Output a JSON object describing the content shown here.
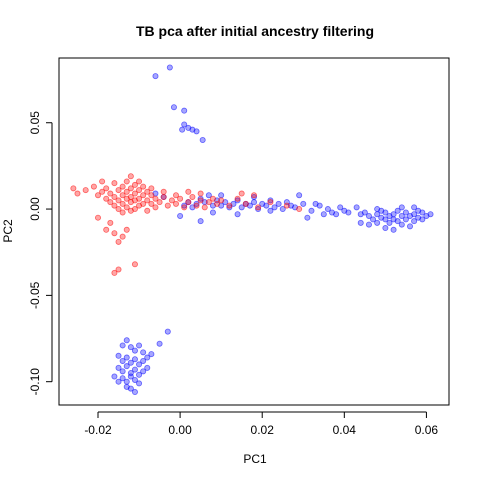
{
  "chart_data": {
    "type": "scatter",
    "title": "TB pca after initial ancestry filtering",
    "xlabel": "PC1",
    "ylabel": "PC2",
    "xlim": [
      -0.0295,
      0.0655
    ],
    "ylim": [
      -0.1135,
      0.0875
    ],
    "xticks": [
      -0.02,
      0.0,
      0.02,
      0.04,
      0.06
    ],
    "xtick_labels": [
      "-0.02",
      "0.00",
      "0.02",
      "0.04",
      "0.06"
    ],
    "yticks": [
      -0.1,
      -0.05,
      0.0,
      0.05
    ],
    "ytick_labels": [
      "-0.10",
      "-0.05",
      "0.00",
      "0.05"
    ],
    "grid": false,
    "legend": "none",
    "colors": {
      "blue": "#0000ff",
      "red": "#ff0000"
    },
    "series": [
      {
        "color": "blue",
        "points": [
          [
            -0.006,
            0.077
          ],
          [
            -0.0025,
            0.082
          ],
          [
            -0.0015,
            0.059
          ],
          [
            0.001,
            0.057
          ],
          [
            0.001,
            0.049
          ],
          [
            0.002,
            0.047
          ],
          [
            0.003,
            0.046
          ],
          [
            0.004,
            0.045
          ],
          [
            0.0055,
            0.04
          ],
          [
            0.0005,
            0.046
          ],
          [
            0.001,
            0.002
          ],
          [
            0.002,
            0.004
          ],
          [
            0.003,
            0.001
          ],
          [
            0.004,
            0.003
          ],
          [
            0.005,
            0.006
          ],
          [
            0.006,
            0.004
          ],
          [
            0.007,
            0.008
          ],
          [
            0.008,
            0.002
          ],
          [
            0.009,
            0.005
          ],
          [
            0.01,
            0.002
          ],
          [
            0.011,
            0.004
          ],
          [
            0.012,
            0.001
          ],
          [
            0.013,
            0.003
          ],
          [
            0.014,
            0.005
          ],
          [
            0.015,
            0.001
          ],
          [
            0.016,
            0.003
          ],
          [
            0.017,
            0.002
          ],
          [
            0.018,
            0.004
          ],
          [
            0.019,
            0.0
          ],
          [
            0.02,
            0.003
          ],
          [
            0.021,
            0.002
          ],
          [
            0.022,
            0.005
          ],
          [
            0.023,
            0.001
          ],
          [
            0.024,
            0.003
          ],
          [
            0.025,
            0.0
          ],
          [
            0.026,
            0.004
          ],
          [
            0.027,
            0.002
          ],
          [
            0.028,
            0.001
          ],
          [
            0.03,
            0.003
          ],
          [
            0.032,
            -0.001
          ],
          [
            0.034,
            0.002
          ],
          [
            0.035,
            -0.003
          ],
          [
            0.036,
            0.0
          ],
          [
            0.037,
            -0.002
          ],
          [
            0.038,
            -0.003
          ],
          [
            0.04,
            -0.001
          ],
          [
            0.041,
            -0.002
          ],
          [
            0.043,
            0.001
          ],
          [
            0.044,
            -0.003
          ],
          [
            0.045,
            -0.002
          ],
          [
            0.046,
            -0.004
          ],
          [
            0.047,
            -0.006
          ],
          [
            0.048,
            -0.008
          ],
          [
            0.048,
            -0.003
          ],
          [
            0.049,
            -0.005
          ],
          [
            0.049,
            -0.001
          ],
          [
            0.05,
            -0.006
          ],
          [
            0.05,
            -0.002
          ],
          [
            0.051,
            -0.004
          ],
          [
            0.051,
            -0.008
          ],
          [
            0.052,
            -0.003
          ],
          [
            0.052,
            -0.006
          ],
          [
            0.053,
            -0.001
          ],
          [
            0.053,
            -0.007
          ],
          [
            0.054,
            -0.004
          ],
          [
            0.054,
            -0.009
          ],
          [
            0.055,
            -0.002
          ],
          [
            0.055,
            -0.006
          ],
          [
            0.056,
            -0.004
          ],
          [
            0.056,
            -0.01
          ],
          [
            0.057,
            -0.003
          ],
          [
            0.057,
            -0.007
          ],
          [
            0.058,
            -0.005
          ],
          [
            0.058,
            -0.001
          ],
          [
            0.059,
            -0.006
          ],
          [
            0.059,
            -0.002
          ],
          [
            0.06,
            -0.004
          ],
          [
            0.061,
            -0.003
          ],
          [
            0.05,
            -0.011
          ],
          [
            0.046,
            -0.009
          ],
          [
            0.052,
            -0.012
          ],
          [
            0.054,
            0.001
          ],
          [
            0.048,
            0.0
          ],
          [
            0.057,
            0.001
          ],
          [
            0.031,
            -0.005
          ],
          [
            0.029,
            0.008
          ],
          [
            0.014,
            -0.003
          ],
          [
            0.008,
            -0.002
          ],
          [
            0.01,
            0.008
          ],
          [
            0.018,
            0.007
          ],
          [
            -0.004,
            0.007
          ],
          [
            -0.006,
            0.009
          ],
          [
            0.0,
            -0.004
          ],
          [
            0.022,
            -0.001
          ],
          [
            0.044,
            -0.008
          ],
          [
            0.033,
            0.003
          ],
          [
            0.039,
            0.001
          ],
          [
            0.005,
            -0.007
          ],
          [
            -0.014,
            -0.079
          ],
          [
            -0.013,
            -0.076
          ],
          [
            -0.012,
            -0.08
          ],
          [
            -0.011,
            -0.082
          ],
          [
            -0.01,
            -0.079
          ],
          [
            -0.009,
            -0.083
          ],
          [
            -0.015,
            -0.085
          ],
          [
            -0.014,
            -0.088
          ],
          [
            -0.013,
            -0.086
          ],
          [
            -0.012,
            -0.089
          ],
          [
            -0.011,
            -0.087
          ],
          [
            -0.01,
            -0.09
          ],
          [
            -0.009,
            -0.088
          ],
          [
            -0.008,
            -0.086
          ],
          [
            -0.015,
            -0.092
          ],
          [
            -0.014,
            -0.094
          ],
          [
            -0.013,
            -0.091
          ],
          [
            -0.012,
            -0.095
          ],
          [
            -0.011,
            -0.093
          ],
          [
            -0.01,
            -0.096
          ],
          [
            -0.009,
            -0.094
          ],
          [
            -0.014,
            -0.098
          ],
          [
            -0.013,
            -0.1
          ],
          [
            -0.012,
            -0.097
          ],
          [
            -0.011,
            -0.099
          ],
          [
            -0.01,
            -0.101
          ],
          [
            -0.012,
            -0.104
          ],
          [
            -0.011,
            -0.106
          ],
          [
            -0.013,
            -0.103
          ],
          [
            -0.016,
            -0.097
          ],
          [
            -0.015,
            -0.1
          ],
          [
            -0.008,
            -0.092
          ],
          [
            -0.007,
            -0.084
          ],
          [
            -0.003,
            -0.071
          ],
          [
            -0.005,
            -0.078
          ]
        ]
      },
      {
        "color": "red",
        "points": [
          [
            -0.026,
            0.012
          ],
          [
            -0.025,
            0.009
          ],
          [
            -0.023,
            0.011
          ],
          [
            -0.021,
            0.013
          ],
          [
            -0.02,
            0.008
          ],
          [
            -0.019,
            0.01
          ],
          [
            -0.018,
            0.012
          ],
          [
            -0.018,
            0.006
          ],
          [
            -0.017,
            0.009
          ],
          [
            -0.017,
            0.004
          ],
          [
            -0.016,
            0.015
          ],
          [
            -0.016,
            0.007
          ],
          [
            -0.016,
            0.002
          ],
          [
            -0.015,
            0.011
          ],
          [
            -0.015,
            0.005
          ],
          [
            -0.015,
            0.0
          ],
          [
            -0.014,
            0.013
          ],
          [
            -0.014,
            0.008
          ],
          [
            -0.014,
            0.003
          ],
          [
            -0.014,
            -0.002
          ],
          [
            -0.013,
            0.016
          ],
          [
            -0.013,
            0.01
          ],
          [
            -0.013,
            0.006
          ],
          [
            -0.013,
            0.001
          ],
          [
            -0.012,
            0.012
          ],
          [
            -0.012,
            0.007
          ],
          [
            -0.012,
            0.004
          ],
          [
            -0.012,
            -0.001
          ],
          [
            -0.011,
            0.014
          ],
          [
            -0.011,
            0.009
          ],
          [
            -0.011,
            0.005
          ],
          [
            -0.011,
            0.0
          ],
          [
            -0.01,
            0.011
          ],
          [
            -0.01,
            0.006
          ],
          [
            -0.01,
            0.002
          ],
          [
            -0.009,
            0.013
          ],
          [
            -0.009,
            0.008
          ],
          [
            -0.009,
            0.003
          ],
          [
            -0.008,
            0.01
          ],
          [
            -0.008,
            0.005
          ],
          [
            -0.008,
            -0.001
          ],
          [
            -0.007,
            0.008
          ],
          [
            -0.007,
            0.003
          ],
          [
            -0.006,
            0.006
          ],
          [
            -0.006,
            0.001
          ],
          [
            -0.005,
            0.004
          ],
          [
            -0.004,
            0.007
          ],
          [
            -0.003,
            0.002
          ],
          [
            -0.002,
            0.005
          ],
          [
            -0.001,
            0.003
          ],
          [
            0.0,
            0.006
          ],
          [
            0.001,
            0.001
          ],
          [
            0.002,
            0.004
          ],
          [
            0.003,
            0.007
          ],
          [
            0.004,
            0.002
          ],
          [
            0.005,
            0.005
          ],
          [
            0.006,
            0.001
          ],
          [
            0.007,
            0.004
          ],
          [
            0.008,
            0.006
          ],
          [
            0.009,
            0.003
          ],
          [
            0.01,
            0.005
          ],
          [
            0.012,
            0.002
          ],
          [
            0.014,
            0.006
          ],
          [
            0.016,
            0.003
          ],
          [
            0.019,
            0.001
          ],
          [
            0.022,
            0.004
          ],
          [
            0.026,
            0.002
          ],
          [
            0.029,
            0.0
          ],
          [
            -0.016,
            -0.014
          ],
          [
            -0.015,
            -0.019
          ],
          [
            -0.014,
            -0.016
          ],
          [
            -0.013,
            -0.012
          ],
          [
            -0.017,
            -0.008
          ],
          [
            -0.018,
            -0.012
          ],
          [
            -0.015,
            -0.035
          ],
          [
            -0.016,
            -0.037
          ],
          [
            -0.011,
            -0.032
          ],
          [
            -0.02,
            -0.005
          ],
          [
            -0.019,
            0.016
          ],
          [
            -0.012,
            0.019
          ],
          [
            -0.01,
            0.016
          ],
          [
            -0.007,
            0.012
          ],
          [
            -0.004,
            0.01
          ],
          [
            -0.001,
            0.008
          ],
          [
            0.002,
            0.01
          ],
          [
            0.005,
            0.009
          ],
          [
            0.015,
            0.009
          ],
          [
            0.018,
            0.008
          ]
        ]
      }
    ]
  }
}
